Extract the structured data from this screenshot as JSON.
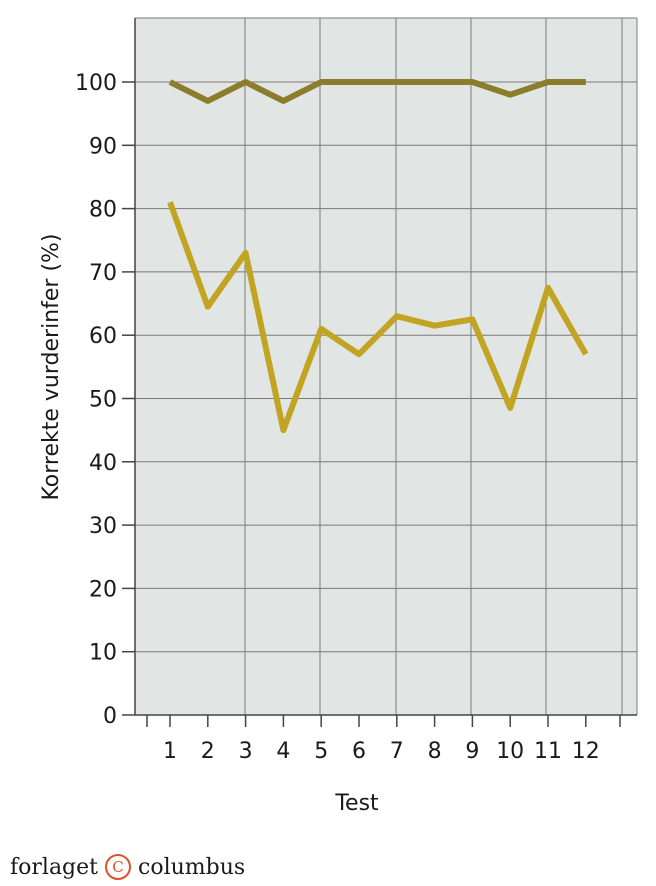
{
  "chart_data": {
    "type": "line",
    "title": "",
    "xlabel": "Test",
    "ylabel": "Korrekte vurderinfer (%)",
    "x": [
      1,
      2,
      3,
      4,
      5,
      6,
      7,
      8,
      9,
      10,
      11,
      12
    ],
    "x_tick_labels": [
      "1",
      "2",
      "3",
      "4",
      "5",
      "6",
      "7",
      "8",
      "9",
      "10",
      "11",
      "12"
    ],
    "y_ticks": [
      0,
      10,
      20,
      30,
      40,
      50,
      60,
      70,
      80,
      90,
      100
    ],
    "ylim": [
      0,
      100
    ],
    "grid": true,
    "series": [
      {
        "color": "#8c7d2c",
        "values": [
          100,
          97,
          100,
          97,
          100,
          100,
          100,
          100,
          100,
          98,
          100,
          100
        ]
      },
      {
        "color": "#c2a423",
        "values": [
          81,
          64.5,
          73,
          45,
          61,
          57,
          63,
          61.5,
          62.5,
          48.5,
          67.5,
          57
        ]
      }
    ],
    "plot_background": "#e1e5e3",
    "grid_color": "#7a7a7a"
  },
  "publisher_logo": {
    "text_left": "forlaget",
    "symbol": "C",
    "text_right": "columbus",
    "symbol_color": "#e0502a"
  }
}
